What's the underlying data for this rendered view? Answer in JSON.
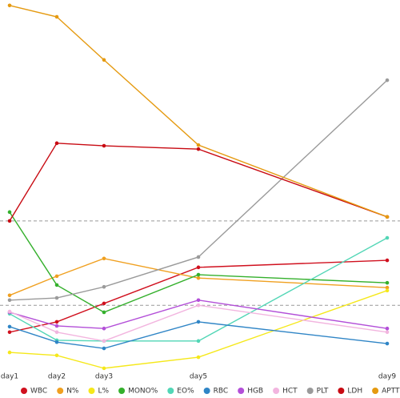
{
  "chart_data": {
    "type": "line",
    "x": [
      1,
      2,
      3,
      5,
      9
    ],
    "xlim": [
      1,
      9
    ],
    "xticks": [
      {
        "value": 1,
        "label": "day1"
      },
      {
        "value": 2,
        "label": "day2"
      },
      {
        "value": 3,
        "label": "day3"
      },
      {
        "value": 5,
        "label": "day5"
      },
      {
        "value": 9,
        "label": "day9"
      }
    ],
    "ylim": [
      0,
      102
    ],
    "hlines": [
      42.2,
      19.3
    ],
    "series": [
      {
        "name": "WBC",
        "color": "#d0101e",
        "values": [
          12.0,
          14.8,
          19.8,
          29.6,
          31.5
        ]
      },
      {
        "name": "N%",
        "color": "#f0a020",
        "values": [
          22.0,
          27.2,
          32.0,
          26.7,
          24.1
        ]
      },
      {
        "name": "L%",
        "color": "#f5e81a",
        "values": [
          6.5,
          5.7,
          2.2,
          5.2,
          23.3
        ]
      },
      {
        "name": "MONO%",
        "color": "#34b02c",
        "values": [
          44.6,
          24.8,
          17.4,
          27.6,
          25.4
        ]
      },
      {
        "name": "EO%",
        "color": "#52d6b6",
        "values": [
          17.0,
          9.8,
          9.6,
          9.6,
          37.6
        ]
      },
      {
        "name": "RBC",
        "color": "#2f85c6",
        "values": [
          13.5,
          9.3,
          7.6,
          14.8,
          8.9
        ]
      },
      {
        "name": "HGB",
        "color": "#b34fd8",
        "values": [
          17.4,
          13.7,
          13.0,
          20.7,
          13.0
        ]
      },
      {
        "name": "HCT",
        "color": "#f2b5df",
        "values": [
          17.6,
          12.0,
          9.6,
          19.3,
          12.0
        ]
      },
      {
        "name": "PLT",
        "color": "#9a9a9a",
        "values": [
          20.7,
          21.3,
          24.3,
          32.4,
          80.4
        ]
      },
      {
        "name": "LDH",
        "color": "#c80a12",
        "values": [
          42.2,
          63.3,
          62.6,
          61.7,
          43.3
        ]
      },
      {
        "name": "APTT",
        "color": "#e59a10",
        "values": [
          100.7,
          97.6,
          85.9,
          62.8,
          43.3
        ]
      }
    ]
  }
}
